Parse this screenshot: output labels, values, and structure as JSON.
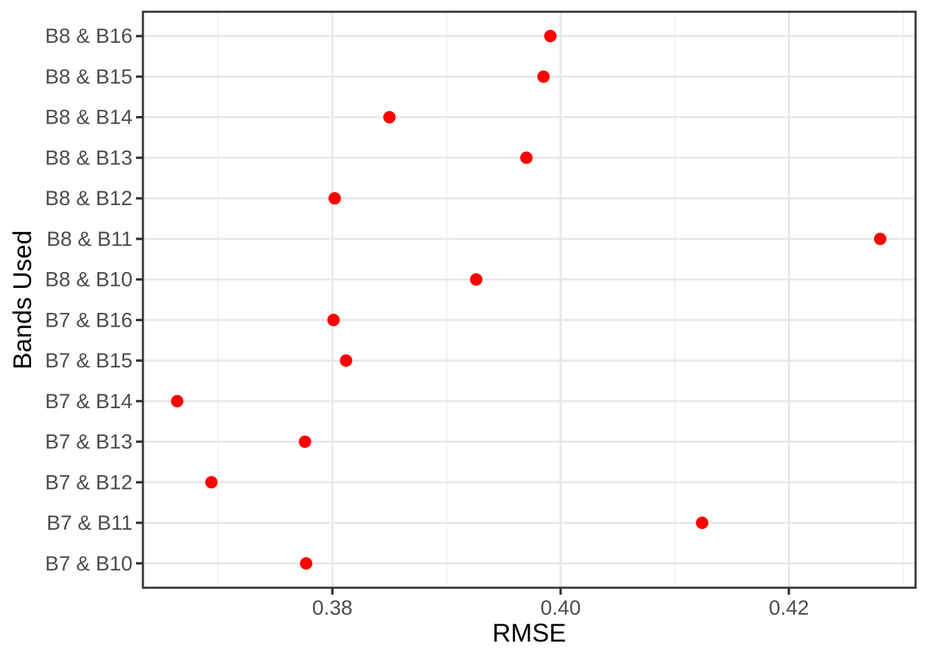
{
  "chart_data": {
    "type": "scatter",
    "subtype": "horizontal-dot-plot",
    "title": "",
    "xlabel": "RMSE",
    "ylabel": "Bands Used",
    "points": [
      {
        "category": "B7 & B10",
        "value": 0.3777
      },
      {
        "category": "B7 & B11",
        "value": 0.4124
      },
      {
        "category": "B7 & B12",
        "value": 0.3694
      },
      {
        "category": "B7 & B13",
        "value": 0.3776
      },
      {
        "category": "B7 & B14",
        "value": 0.3664
      },
      {
        "category": "B7 & B15",
        "value": 0.3812
      },
      {
        "category": "B7 & B16",
        "value": 0.3801
      },
      {
        "category": "B8 & B10",
        "value": 0.3926
      },
      {
        "category": "B8 & B11",
        "value": 0.428
      },
      {
        "category": "B8 & B12",
        "value": 0.3802
      },
      {
        "category": "B8 & B13",
        "value": 0.397
      },
      {
        "category": "B8 & B14",
        "value": 0.385
      },
      {
        "category": "B8 & B15",
        "value": 0.3985
      },
      {
        "category": "B8 & B16",
        "value": 0.3991
      }
    ],
    "category_order_note": "points listed bottom row to top row",
    "xlim": [
      0.3634,
      0.4311
    ],
    "x_major_ticks": [
      0.38,
      0.4,
      0.42
    ],
    "x_tick_labels": [
      "0.38",
      "0.40",
      "0.42"
    ],
    "x_minor_ticks": [
      0.37,
      0.39,
      0.41,
      0.43
    ],
    "grid": "horizontal major per category; vertical major + minor",
    "legend_position": "none",
    "colors": {
      "point": "#FF0000",
      "panel_border": "#333333",
      "grid_major": "#E8E8E8",
      "grid_minor": "#F1F1F1",
      "tick_mark": "#333333",
      "tick_label": "#4D4D4D",
      "axis_title": "#000000",
      "background": "#FFFFFF"
    }
  }
}
